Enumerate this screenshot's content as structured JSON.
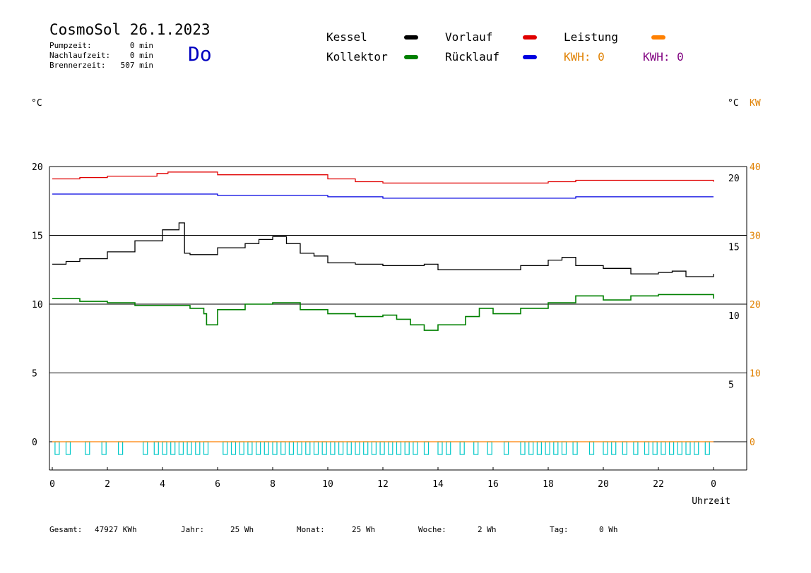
{
  "header": {
    "title": "CosmoSol 26.1.2023",
    "weekday": "Do",
    "stats": [
      {
        "label": "Pumpzeit:",
        "value": "0 min"
      },
      {
        "label": "Nachlaufzeit:",
        "value": "0 min"
      },
      {
        "label": "Brennerzeit:",
        "value": "507 min"
      }
    ]
  },
  "legend": {
    "kessel": "Kessel",
    "kollektor": "Kollektor",
    "vorlauf": "Vorlauf",
    "ruecklauf": "Rücklauf",
    "leistung": "Leistung",
    "kwh_orange": "KWH: 0",
    "kwh_purple": "KWH: 0"
  },
  "axis_units": {
    "left": "°C",
    "right_c": "°C",
    "right_kw": "KW"
  },
  "footer": {
    "gesamt_label": "Gesamt:",
    "gesamt_value": "47927 KWh",
    "jahr_label": "Jahr:",
    "jahr_value": "25 Wh",
    "monat_label": "Monat:",
    "monat_value": "25 Wh",
    "woche_label": "Woche:",
    "woche_value": "2 Wh",
    "tag_label": "Tag:",
    "tag_value": "0 Wh"
  },
  "colors": {
    "kessel": "#000000",
    "kollektor": "#008000",
    "vorlauf": "#e00000",
    "ruecklauf": "#0000e0",
    "leistung": "#ff8000",
    "kwh_purple": "#800080",
    "pump": "#00c8c8",
    "weekday": "#0000c0"
  },
  "chart_data": {
    "type": "line",
    "xlabel": "Uhrzeit",
    "x_ticks": [
      "0",
      "2",
      "4",
      "6",
      "8",
      "10",
      "12",
      "14",
      "16",
      "18",
      "20",
      "22",
      "0"
    ],
    "xlim": [
      0,
      24
    ],
    "ylim_left": [
      0,
      20
    ],
    "y_ticks_left": [
      "0",
      "5",
      "10",
      "15",
      "20"
    ],
    "y_ticks_right_c": [
      "5",
      "10",
      "15",
      "20"
    ],
    "y_ticks_right_kw": [
      "0",
      "10",
      "20",
      "30",
      "40"
    ],
    "grid": "horizontal",
    "series": [
      {
        "name": "Vorlauf",
        "color": "#e00000",
        "x": [
          0,
          1,
          2,
          3.8,
          4.2,
          5,
          6,
          7,
          8,
          9,
          10,
          11,
          12,
          13,
          14,
          15,
          16,
          17,
          18,
          19,
          20,
          21,
          22,
          23,
          24
        ],
        "y": [
          19.1,
          19.2,
          19.3,
          19.5,
          19.6,
          19.6,
          19.4,
          19.4,
          19.4,
          19.4,
          19.1,
          18.9,
          18.8,
          18.8,
          18.8,
          18.8,
          18.8,
          18.8,
          18.9,
          19.0,
          19.0,
          19.0,
          19.0,
          19.0,
          18.9
        ]
      },
      {
        "name": "Rücklauf",
        "color": "#0000e0",
        "x": [
          0,
          2,
          4,
          6,
          8,
          9.5,
          10,
          11,
          12,
          13,
          14,
          15,
          16,
          17,
          18,
          19,
          20,
          21,
          22,
          23,
          24
        ],
        "y": [
          18.0,
          18.0,
          18.0,
          17.9,
          17.9,
          17.9,
          17.8,
          17.8,
          17.7,
          17.7,
          17.7,
          17.7,
          17.7,
          17.7,
          17.7,
          17.8,
          17.8,
          17.8,
          17.8,
          17.8,
          17.8
        ]
      },
      {
        "name": "Kessel",
        "color": "#000000",
        "x": [
          0,
          0.5,
          1,
          2,
          3,
          4,
          4.6,
          4.8,
          5,
          6,
          7,
          7.5,
          8,
          8.5,
          9,
          9.5,
          10,
          11,
          12,
          13,
          13.5,
          14,
          15,
          16,
          17,
          18,
          18.5,
          19,
          20,
          21,
          22,
          22.5,
          23,
          24
        ],
        "y": [
          12.9,
          13.1,
          13.3,
          13.8,
          14.6,
          15.4,
          15.9,
          13.7,
          13.6,
          14.1,
          14.4,
          14.7,
          14.9,
          14.4,
          13.7,
          13.5,
          13.0,
          12.9,
          12.8,
          12.8,
          12.9,
          12.5,
          12.5,
          12.5,
          12.8,
          13.2,
          13.4,
          12.8,
          12.6,
          12.2,
          12.3,
          12.4,
          12.0,
          12.2
        ]
      },
      {
        "name": "Kollektor",
        "color": "#008000",
        "x": [
          0,
          1,
          2,
          3,
          4,
          5,
          5.5,
          5.6,
          6,
          7,
          8,
          9,
          10,
          11,
          12,
          12.5,
          13,
          13.5,
          14,
          15,
          15.5,
          16,
          17,
          18,
          19,
          20,
          21,
          22,
          23,
          24
        ],
        "y": [
          10.4,
          10.2,
          10.1,
          9.9,
          9.9,
          9.7,
          9.3,
          8.5,
          9.6,
          10.0,
          10.1,
          9.6,
          9.3,
          9.1,
          9.2,
          8.9,
          8.5,
          8.1,
          8.5,
          9.1,
          9.7,
          9.3,
          9.7,
          10.1,
          10.6,
          10.3,
          10.6,
          10.7,
          10.7,
          10.4
        ]
      },
      {
        "name": "Leistung",
        "color": "#ff8000",
        "x": [
          0,
          24
        ],
        "y": [
          0,
          0
        ]
      }
    ],
    "pump_pulses_hours": [
      0.1,
      0.5,
      1.2,
      1.8,
      2.4,
      3.3,
      3.7,
      4.0,
      4.3,
      4.6,
      4.9,
      5.2,
      5.5,
      6.2,
      6.5,
      6.8,
      7.1,
      7.4,
      7.7,
      8.0,
      8.3,
      8.6,
      8.9,
      9.2,
      9.5,
      9.8,
      10.1,
      10.4,
      10.7,
      11.0,
      11.3,
      11.6,
      11.9,
      12.2,
      12.5,
      12.8,
      13.1,
      13.5,
      14.0,
      14.3,
      14.8,
      15.3,
      15.8,
      16.4,
      17.0,
      17.3,
      17.6,
      17.9,
      18.2,
      18.5,
      18.9,
      19.5,
      20.0,
      20.3,
      20.7,
      21.1,
      21.5,
      21.8,
      22.1,
      22.4,
      22.7,
      23.0,
      23.3,
      23.7
    ]
  }
}
